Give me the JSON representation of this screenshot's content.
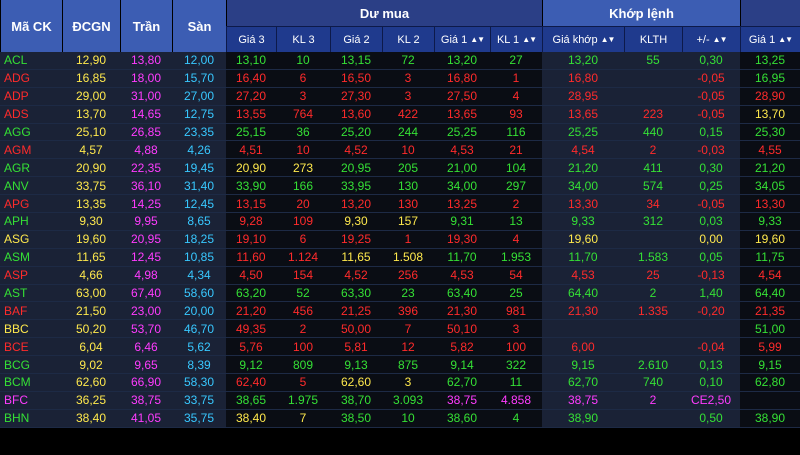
{
  "header": {
    "symbol": "Mã CK",
    "ref": "ĐCGN",
    "ceiling": "Trần",
    "floor": "Sàn",
    "bid_group": "Dư mua",
    "match_group": "Khớp lệnh",
    "bid_cols": [
      "Giá 3",
      "KL 3",
      "Giá 2",
      "KL 2",
      "Giá 1",
      "KL 1"
    ],
    "match_cols": [
      "Giá khớp",
      "KLTH",
      "+/-"
    ],
    "ask_col": "Giá 1",
    "sort_icon": "▲▼"
  },
  "colors": {
    "up": "#35e035",
    "down": "#ff2b2b",
    "reference": "#ffe94d",
    "ceiling": "#ff3cff",
    "floor": "#38c8ff",
    "header_blue": "#1f3a8d"
  },
  "rows": [
    {
      "sym": "ACL",
      "s": "u",
      "ref": "12,90",
      "ceil": "13,80",
      "floor": "12,00",
      "g3": "13,10",
      "k3": "10",
      "s3": "u",
      "g2": "13,15",
      "k2": "72",
      "s2": "u",
      "g1": "13,20",
      "k1": "27",
      "s1": "u",
      "mp": "13,20",
      "mv": "55",
      "ch": "0,30",
      "ms": "u",
      "a1": "13,25",
      "as": "u"
    },
    {
      "sym": "ADG",
      "s": "d",
      "ref": "16,85",
      "ceil": "18,00",
      "floor": "15,70",
      "g3": "16,40",
      "k3": "6",
      "s3": "d",
      "g2": "16,50",
      "k2": "3",
      "s2": "d",
      "g1": "16,80",
      "k1": "1",
      "s1": "d",
      "mp": "16,80",
      "mv": "",
      "ch": "-0,05",
      "ms": "d",
      "a1": "16,95",
      "as": "u"
    },
    {
      "sym": "ADP",
      "s": "d",
      "ref": "29,00",
      "ceil": "31,00",
      "floor": "27,00",
      "g3": "27,20",
      "k3": "3",
      "s3": "d",
      "g2": "27,30",
      "k2": "3",
      "s2": "d",
      "g1": "27,50",
      "k1": "4",
      "s1": "d",
      "mp": "28,95",
      "mv": "",
      "ch": "-0,05",
      "ms": "d",
      "a1": "28,90",
      "as": "d"
    },
    {
      "sym": "ADS",
      "s": "d",
      "ref": "13,70",
      "ceil": "14,65",
      "floor": "12,75",
      "g3": "13,55",
      "k3": "764",
      "s3": "d",
      "g2": "13,60",
      "k2": "422",
      "s2": "d",
      "g1": "13,65",
      "k1": "93",
      "s1": "d",
      "mp": "13,65",
      "mv": "223",
      "ch": "-0,05",
      "ms": "d",
      "a1": "13,70",
      "as": "r"
    },
    {
      "sym": "AGG",
      "s": "u",
      "ref": "25,10",
      "ceil": "26,85",
      "floor": "23,35",
      "g3": "25,15",
      "k3": "36",
      "s3": "u",
      "g2": "25,20",
      "k2": "244",
      "s2": "u",
      "g1": "25,25",
      "k1": "116",
      "s1": "u",
      "mp": "25,25",
      "mv": "440",
      "ch": "0,15",
      "ms": "u",
      "a1": "25,30",
      "as": "u"
    },
    {
      "sym": "AGM",
      "s": "d",
      "ref": "4,57",
      "ceil": "4,88",
      "floor": "4,26",
      "g3": "4,51",
      "k3": "10",
      "s3": "d",
      "g2": "4,52",
      "k2": "10",
      "s2": "d",
      "g1": "4,53",
      "k1": "21",
      "s1": "d",
      "mp": "4,54",
      "mv": "2",
      "ch": "-0,03",
      "ms": "d",
      "a1": "4,55",
      "as": "d"
    },
    {
      "sym": "AGR",
      "s": "u",
      "ref": "20,90",
      "ceil": "22,35",
      "floor": "19,45",
      "g3": "20,90",
      "k3": "273",
      "s3": "r",
      "g2": "20,95",
      "k2": "205",
      "s2": "u",
      "g1": "21,00",
      "k1": "104",
      "s1": "u",
      "mp": "21,20",
      "mv": "411",
      "ch": "0,30",
      "ms": "u",
      "a1": "21,20",
      "as": "u"
    },
    {
      "sym": "ANV",
      "s": "u",
      "ref": "33,75",
      "ceil": "36,10",
      "floor": "31,40",
      "g3": "33,90",
      "k3": "166",
      "s3": "u",
      "g2": "33,95",
      "k2": "130",
      "s2": "u",
      "g1": "34,00",
      "k1": "297",
      "s1": "u",
      "mp": "34,00",
      "mv": "574",
      "ch": "0,25",
      "ms": "u",
      "a1": "34,05",
      "as": "u"
    },
    {
      "sym": "APG",
      "s": "d",
      "ref": "13,35",
      "ceil": "14,25",
      "floor": "12,45",
      "g3": "13,15",
      "k3": "20",
      "s3": "d",
      "g2": "13,20",
      "k2": "130",
      "s2": "d",
      "g1": "13,25",
      "k1": "2",
      "s1": "d",
      "mp": "13,30",
      "mv": "34",
      "ch": "-0,05",
      "ms": "d",
      "a1": "13,30",
      "as": "d"
    },
    {
      "sym": "APH",
      "s": "u",
      "ref": "9,30",
      "ceil": "9,95",
      "floor": "8,65",
      "g3": "9,28",
      "k3": "109",
      "s3": "d",
      "g2": "9,30",
      "k2": "157",
      "s2": "r",
      "g1": "9,31",
      "k1": "13",
      "s1": "u",
      "mp": "9,33",
      "mv": "312",
      "ch": "0,03",
      "ms": "u",
      "a1": "9,33",
      "as": "u"
    },
    {
      "sym": "ASG",
      "s": "r",
      "ref": "19,60",
      "ceil": "20,95",
      "floor": "18,25",
      "g3": "19,10",
      "k3": "6",
      "s3": "d",
      "g2": "19,25",
      "k2": "1",
      "s2": "d",
      "g1": "19,30",
      "k1": "4",
      "s1": "d",
      "mp": "19,60",
      "mv": "",
      "ch": "0,00",
      "ms": "r",
      "a1": "19,60",
      "as": "r"
    },
    {
      "sym": "ASM",
      "s": "u",
      "ref": "11,65",
      "ceil": "12,45",
      "floor": "10,85",
      "g3": "11,60",
      "k3": "1.124",
      "s3": "d",
      "g2": "11,65",
      "k2": "1.508",
      "s2": "r",
      "g1": "11,70",
      "k1": "1.953",
      "s1": "u",
      "mp": "11,70",
      "mv": "1.583",
      "ch": "0,05",
      "ms": "u",
      "a1": "11,75",
      "as": "u"
    },
    {
      "sym": "ASP",
      "s": "d",
      "ref": "4,66",
      "ceil": "4,98",
      "floor": "4,34",
      "g3": "4,50",
      "k3": "154",
      "s3": "d",
      "g2": "4,52",
      "k2": "256",
      "s2": "d",
      "g1": "4,53",
      "k1": "54",
      "s1": "d",
      "mp": "4,53",
      "mv": "25",
      "ch": "-0,13",
      "ms": "d",
      "a1": "4,54",
      "as": "d"
    },
    {
      "sym": "AST",
      "s": "u",
      "ref": "63,00",
      "ceil": "67,40",
      "floor": "58,60",
      "g3": "63,20",
      "k3": "52",
      "s3": "u",
      "g2": "63,30",
      "k2": "23",
      "s2": "u",
      "g1": "63,40",
      "k1": "25",
      "s1": "u",
      "mp": "64,40",
      "mv": "2",
      "ch": "1,40",
      "ms": "u",
      "a1": "64,40",
      "as": "u"
    },
    {
      "sym": "BAF",
      "s": "d",
      "ref": "21,50",
      "ceil": "23,00",
      "floor": "20,00",
      "g3": "21,20",
      "k3": "456",
      "s3": "d",
      "g2": "21,25",
      "k2": "396",
      "s2": "d",
      "g1": "21,30",
      "k1": "981",
      "s1": "d",
      "mp": "21,30",
      "mv": "1.335",
      "ch": "-0,20",
      "ms": "d",
      "a1": "21,35",
      "as": "d"
    },
    {
      "sym": "BBC",
      "s": "r",
      "ref": "50,20",
      "ceil": "53,70",
      "floor": "46,70",
      "g3": "49,35",
      "k3": "2",
      "s3": "d",
      "g2": "50,00",
      "k2": "7",
      "s2": "d",
      "g1": "50,10",
      "k1": "3",
      "s1": "d",
      "mp": "",
      "mv": "",
      "ch": "",
      "ms": "r",
      "a1": "51,00",
      "as": "u"
    },
    {
      "sym": "BCE",
      "s": "d",
      "ref": "6,04",
      "ceil": "6,46",
      "floor": "5,62",
      "g3": "5,76",
      "k3": "100",
      "s3": "d",
      "g2": "5,81",
      "k2": "12",
      "s2": "d",
      "g1": "5,82",
      "k1": "100",
      "s1": "d",
      "mp": "6,00",
      "mv": "",
      "ch": "-0,04",
      "ms": "d",
      "a1": "5,99",
      "as": "d"
    },
    {
      "sym": "BCG",
      "s": "u",
      "ref": "9,02",
      "ceil": "9,65",
      "floor": "8,39",
      "g3": "9,12",
      "k3": "809",
      "s3": "u",
      "g2": "9,13",
      "k2": "875",
      "s2": "u",
      "g1": "9,14",
      "k1": "322",
      "s1": "u",
      "mp": "9,15",
      "mv": "2.610",
      "ch": "0,13",
      "ms": "u",
      "a1": "9,15",
      "as": "u"
    },
    {
      "sym": "BCM",
      "s": "u",
      "ref": "62,60",
      "ceil": "66,90",
      "floor": "58,30",
      "g3": "62,40",
      "k3": "5",
      "s3": "d",
      "g2": "62,60",
      "k2": "3",
      "s2": "r",
      "g1": "62,70",
      "k1": "11",
      "s1": "u",
      "mp": "62,70",
      "mv": "740",
      "ch": "0,10",
      "ms": "u",
      "a1": "62,80",
      "as": "u"
    },
    {
      "sym": "BFC",
      "s": "c",
      "ref": "36,25",
      "ceil": "38,75",
      "floor": "33,75",
      "g3": "38,65",
      "k3": "1.975",
      "s3": "u",
      "g2": "38,70",
      "k2": "3.093",
      "s2": "u",
      "g1": "38,75",
      "k1": "4.858",
      "s1": "c",
      "mp": "38,75",
      "mv": "2",
      "ch": "CE2,50",
      "ms": "c",
      "a1": "",
      "as": "c"
    },
    {
      "sym": "BHN",
      "s": "u",
      "ref": "38,40",
      "ceil": "41,05",
      "floor": "35,75",
      "g3": "38,40",
      "k3": "7",
      "s3": "r",
      "g2": "38,50",
      "k2": "10",
      "s2": "u",
      "g1": "38,60",
      "k1": "4",
      "s1": "u",
      "mp": "38,90",
      "mv": "",
      "ch": "0,50",
      "ms": "u",
      "a1": "38,90",
      "as": "u"
    }
  ]
}
